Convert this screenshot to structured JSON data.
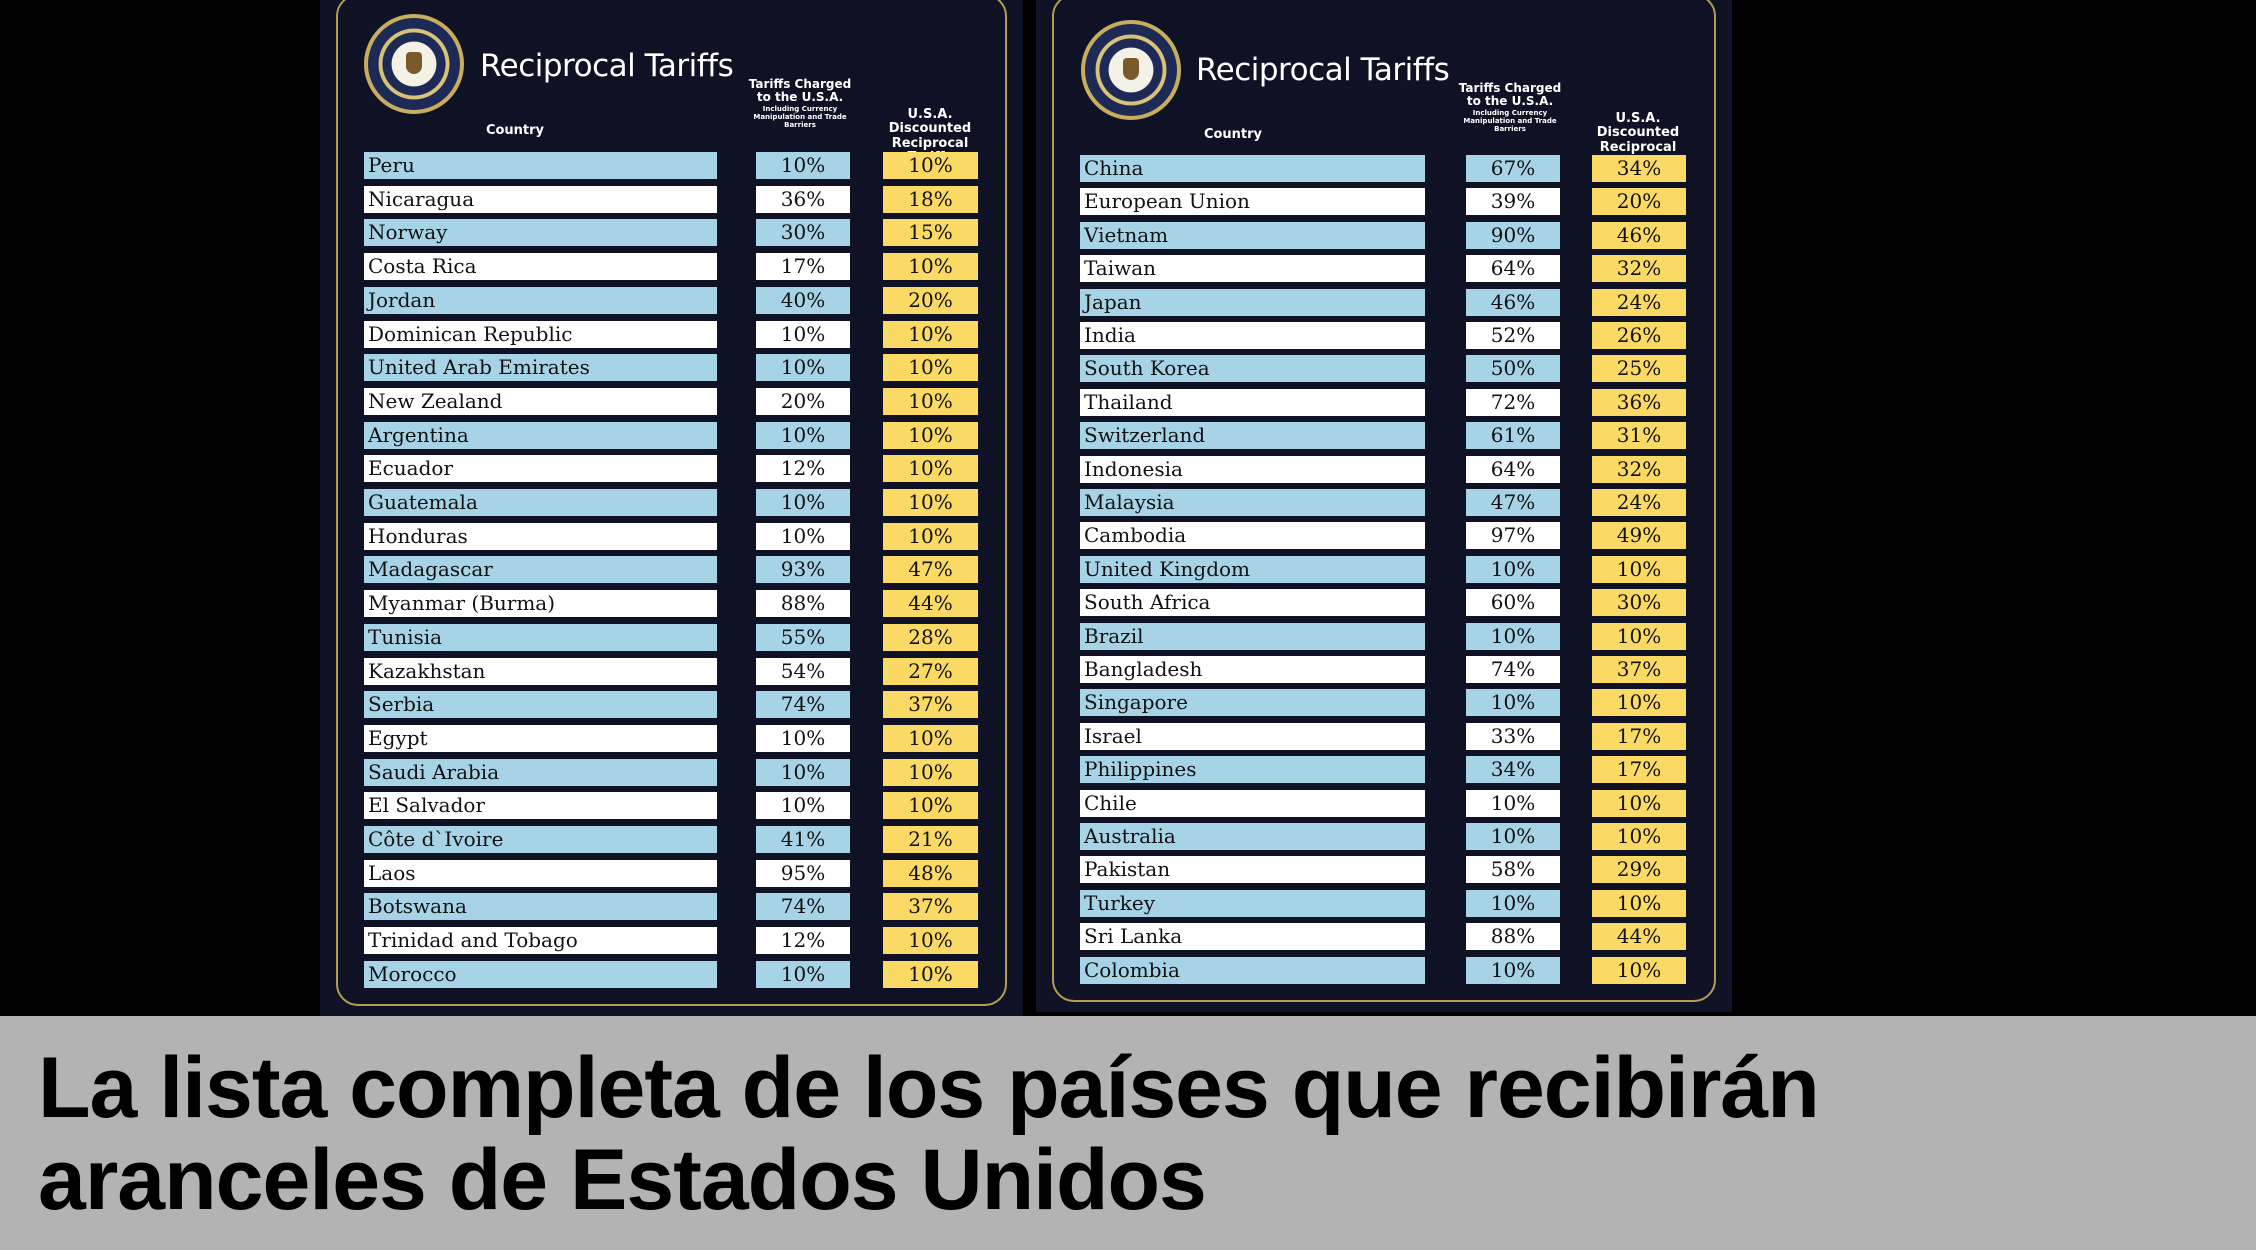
{
  "caption": "La lista completa de los países que recibirán aranceles de Estados Unidos",
  "colors": {
    "panel_background": "#0f1224",
    "frame_gold": "#b59b54",
    "row_blue": "#a6d3e6",
    "row_white": "#ffffff",
    "discount_yellow": "#fad964",
    "caption_bar": "#b3b3b3"
  },
  "chart_data": [
    {
      "type": "table",
      "title": "Reciprocal Tariffs",
      "columns": {
        "country": "Country",
        "charged_main": "Tariffs Charged to the U.S.A.",
        "charged_sub": "Including Currency Manipulation and Trade Barriers",
        "discounted": "U.S.A. Discounted Reciprocal Tariffs"
      },
      "rows": [
        {
          "country": "Peru",
          "charged": "10%",
          "discounted": "10%"
        },
        {
          "country": "Nicaragua",
          "charged": "36%",
          "discounted": "18%"
        },
        {
          "country": "Norway",
          "charged": "30%",
          "discounted": "15%"
        },
        {
          "country": "Costa Rica",
          "charged": "17%",
          "discounted": "10%"
        },
        {
          "country": "Jordan",
          "charged": "40%",
          "discounted": "20%"
        },
        {
          "country": "Dominican Republic",
          "charged": "10%",
          "discounted": "10%"
        },
        {
          "country": "United Arab Emirates",
          "charged": "10%",
          "discounted": "10%"
        },
        {
          "country": "New Zealand",
          "charged": "20%",
          "discounted": "10%"
        },
        {
          "country": "Argentina",
          "charged": "10%",
          "discounted": "10%"
        },
        {
          "country": "Ecuador",
          "charged": "12%",
          "discounted": "10%"
        },
        {
          "country": "Guatemala",
          "charged": "10%",
          "discounted": "10%"
        },
        {
          "country": "Honduras",
          "charged": "10%",
          "discounted": "10%"
        },
        {
          "country": "Madagascar",
          "charged": "93%",
          "discounted": "47%"
        },
        {
          "country": "Myanmar (Burma)",
          "charged": "88%",
          "discounted": "44%"
        },
        {
          "country": "Tunisia",
          "charged": "55%",
          "discounted": "28%"
        },
        {
          "country": "Kazakhstan",
          "charged": "54%",
          "discounted": "27%"
        },
        {
          "country": "Serbia",
          "charged": "74%",
          "discounted": "37%"
        },
        {
          "country": "Egypt",
          "charged": "10%",
          "discounted": "10%"
        },
        {
          "country": "Saudi Arabia",
          "charged": "10%",
          "discounted": "10%"
        },
        {
          "country": "El Salvador",
          "charged": "10%",
          "discounted": "10%"
        },
        {
          "country": "Côte d`Ivoire",
          "charged": "41%",
          "discounted": "21%"
        },
        {
          "country": "Laos",
          "charged": "95%",
          "discounted": "48%"
        },
        {
          "country": "Botswana",
          "charged": "74%",
          "discounted": "37%"
        },
        {
          "country": "Trinidad and Tobago",
          "charged": "12%",
          "discounted": "10%"
        },
        {
          "country": "Morocco",
          "charged": "10%",
          "discounted": "10%"
        }
      ]
    },
    {
      "type": "table",
      "title": "Reciprocal Tariffs",
      "columns": {
        "country": "Country",
        "charged_main": "Tariffs Charged to the U.S.A.",
        "charged_sub": "Including Currency Manipulation and Trade Barriers",
        "discounted": "U.S.A. Discounted Reciprocal Tariffs"
      },
      "rows": [
        {
          "country": "China",
          "charged": "67%",
          "discounted": "34%"
        },
        {
          "country": "European Union",
          "charged": "39%",
          "discounted": "20%"
        },
        {
          "country": "Vietnam",
          "charged": "90%",
          "discounted": "46%"
        },
        {
          "country": "Taiwan",
          "charged": "64%",
          "discounted": "32%"
        },
        {
          "country": "Japan",
          "charged": "46%",
          "discounted": "24%"
        },
        {
          "country": "India",
          "charged": "52%",
          "discounted": "26%"
        },
        {
          "country": "South Korea",
          "charged": "50%",
          "discounted": "25%"
        },
        {
          "country": "Thailand",
          "charged": "72%",
          "discounted": "36%"
        },
        {
          "country": "Switzerland",
          "charged": "61%",
          "discounted": "31%"
        },
        {
          "country": "Indonesia",
          "charged": "64%",
          "discounted": "32%"
        },
        {
          "country": "Malaysia",
          "charged": "47%",
          "discounted": "24%"
        },
        {
          "country": "Cambodia",
          "charged": "97%",
          "discounted": "49%"
        },
        {
          "country": "United Kingdom",
          "charged": "10%",
          "discounted": "10%"
        },
        {
          "country": "South Africa",
          "charged": "60%",
          "discounted": "30%"
        },
        {
          "country": "Brazil",
          "charged": "10%",
          "discounted": "10%"
        },
        {
          "country": "Bangladesh",
          "charged": "74%",
          "discounted": "37%"
        },
        {
          "country": "Singapore",
          "charged": "10%",
          "discounted": "10%"
        },
        {
          "country": "Israel",
          "charged": "33%",
          "discounted": "17%"
        },
        {
          "country": "Philippines",
          "charged": "34%",
          "discounted": "17%"
        },
        {
          "country": "Chile",
          "charged": "10%",
          "discounted": "10%"
        },
        {
          "country": "Australia",
          "charged": "10%",
          "discounted": "10%"
        },
        {
          "country": "Pakistan",
          "charged": "58%",
          "discounted": "29%"
        },
        {
          "country": "Turkey",
          "charged": "10%",
          "discounted": "10%"
        },
        {
          "country": "Sri Lanka",
          "charged": "88%",
          "discounted": "44%"
        },
        {
          "country": "Colombia",
          "charged": "10%",
          "discounted": "10%"
        }
      ]
    }
  ]
}
